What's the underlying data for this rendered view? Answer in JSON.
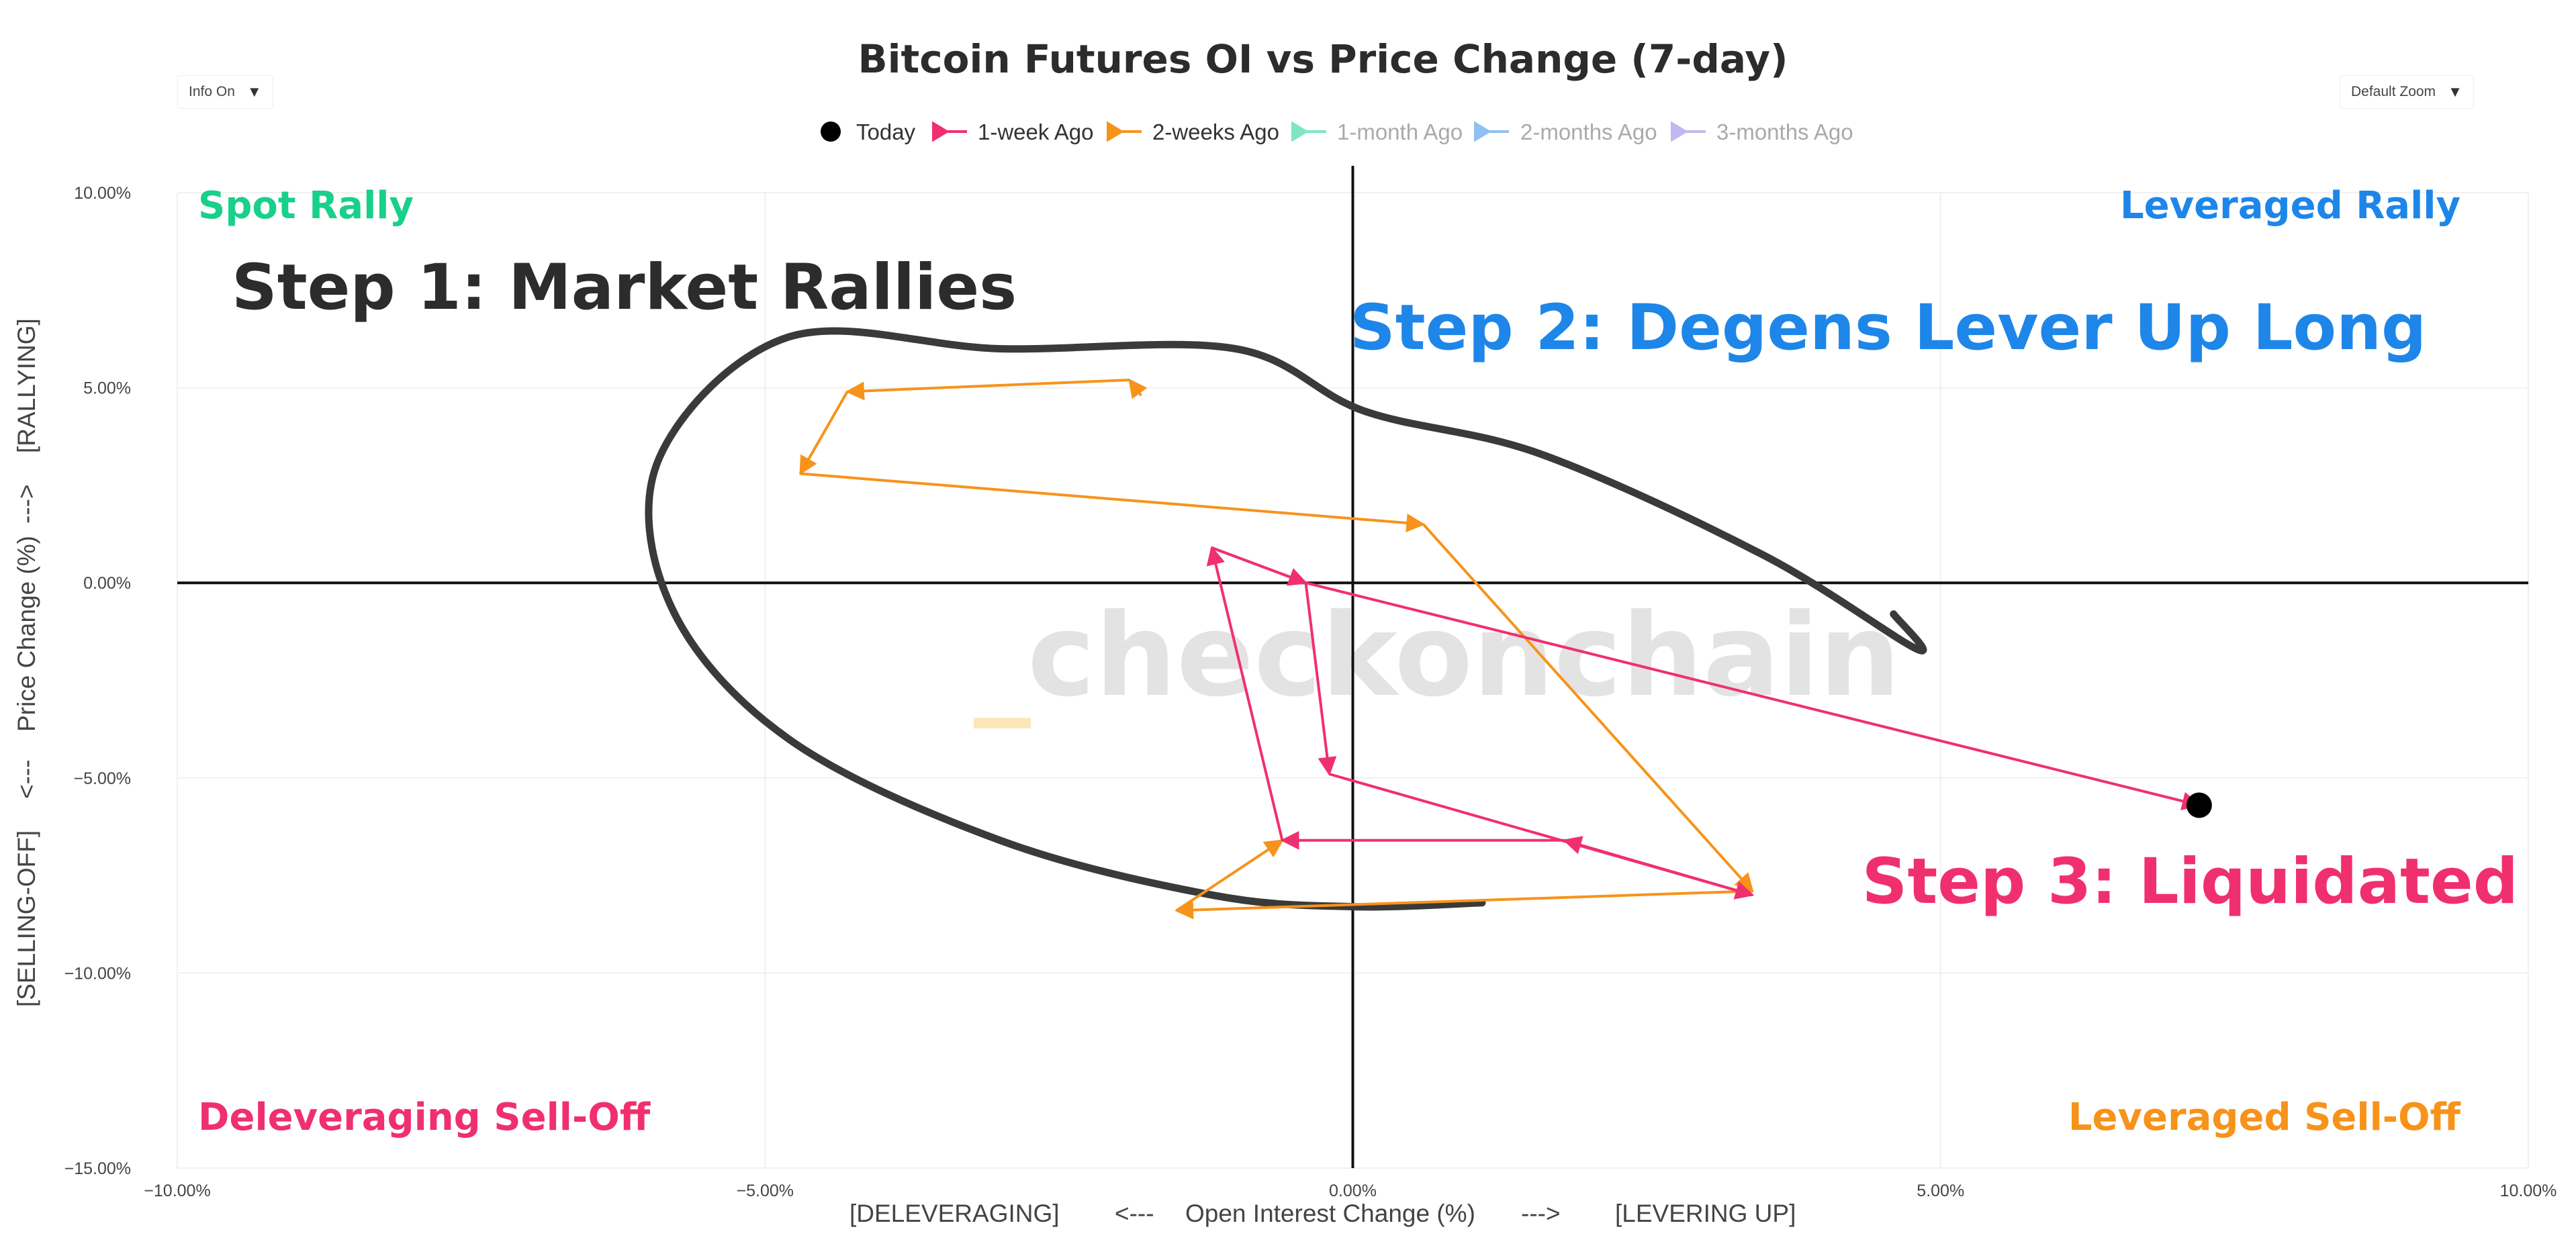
{
  "controls": {
    "info_label": "Info On",
    "info_arrow": "▼",
    "zoom_label": "Default Zoom",
    "zoom_arrow": "▼"
  },
  "colors": {
    "today": "#000000",
    "week1": "#f0306e",
    "week2": "#f7931a",
    "month1": "#7fe6c3",
    "month2": "#8ec0f2",
    "month3": "#c0b8f0",
    "spot_rally": "#18d08a",
    "leveraged_rally": "#1e86e8",
    "delev_selloff": "#f0306e",
    "lev_selloff": "#f7931a",
    "annotation_loop": "#3a3a3a",
    "watermark_accent": "#fbe6b8"
  },
  "watermark": {
    "accent": "_",
    "text": "checkonchain"
  },
  "quadrants": {
    "top_left": "Spot Rally",
    "top_right": "Leveraged Rally",
    "bottom_left": "Deleveraging Sell-Off",
    "bottom_right": "Leveraged Sell-Off"
  },
  "annotations": {
    "step1": "Step 1: Market Rallies",
    "step2": "Step 2: Degens Lever Up Long",
    "step3": "Step 3: Liquidated"
  },
  "chart_data": {
    "type": "scatter",
    "title": "Bitcoin Futures OI vs Price Change (7-day)",
    "xlabel": {
      "left": "[DELEVERAGING]",
      "left_arrow": "<---",
      "center": "Open Interest Change (%)",
      "right_arrow": "--->",
      "right": "[LEVERING UP]"
    },
    "ylabel": {
      "bottom": "[SELLING-OFF]",
      "bottom_arrow": "<---",
      "center": "Price Change (%)",
      "top_arrow": "--->",
      "top": "[RALLYING]"
    },
    "xlim": [
      -10,
      10
    ],
    "ylim": [
      -15,
      10
    ],
    "x_ticks": [
      -10,
      -5,
      0,
      5,
      10
    ],
    "x_tick_labels": [
      "−10.00%",
      "−5.00%",
      "0.00%",
      "5.00%",
      "10.00%"
    ],
    "y_ticks": [
      10,
      5,
      0,
      -5,
      -10,
      -15
    ],
    "y_tick_labels": [
      "10.00%",
      "5.00%",
      "0.00%",
      "−5.00%",
      "−10.00%",
      "−15.00%"
    ],
    "grid": true,
    "legend_position": "top-center",
    "series": [
      {
        "name": "Today",
        "marker": "dot",
        "points": [
          [
            7.2,
            -5.7
          ]
        ]
      },
      {
        "name": "1-week Ago",
        "marker": "arrow",
        "points": [
          [
            -1.2,
            0.9
          ],
          [
            -0.4,
            0.0
          ],
          [
            -0.2,
            -4.9
          ],
          [
            3.4,
            -8.0
          ],
          [
            1.8,
            -6.6
          ],
          [
            -0.6,
            -6.6
          ],
          [
            -1.2,
            0.9
          ],
          [
            -0.4,
            0.0
          ],
          [
            7.2,
            -5.7
          ]
        ]
      },
      {
        "name": "2-weeks Ago",
        "marker": "arrow",
        "points": [
          [
            -1.8,
            4.8
          ],
          [
            -1.9,
            5.2
          ],
          [
            -4.3,
            4.9
          ],
          [
            -4.7,
            2.8
          ],
          [
            0.6,
            1.5
          ],
          [
            3.4,
            -7.9
          ],
          [
            -1.5,
            -8.4
          ],
          [
            -0.6,
            -6.6
          ]
        ]
      },
      {
        "name": "1-month Ago",
        "marker": "arrow",
        "points": []
      },
      {
        "name": "2-months Ago",
        "marker": "arrow",
        "points": []
      },
      {
        "name": "3-months Ago",
        "marker": "arrow",
        "points": []
      }
    ],
    "annotation_loop": [
      [
        1.1,
        -8.2
      ],
      [
        0.0,
        -8.3
      ],
      [
        -1.2,
        -8.0
      ],
      [
        -3.0,
        -6.6
      ],
      [
        -4.8,
        -4.0
      ],
      [
        -5.8,
        -0.6
      ],
      [
        -5.9,
        3.2
      ],
      [
        -4.8,
        6.3
      ],
      [
        -3.0,
        6.0
      ],
      [
        -1.0,
        6.0
      ],
      [
        0.1,
        4.4
      ],
      [
        1.6,
        3.3
      ],
      [
        3.5,
        0.7
      ],
      [
        4.8,
        -1.7
      ],
      [
        4.6,
        -0.8
      ]
    ]
  }
}
